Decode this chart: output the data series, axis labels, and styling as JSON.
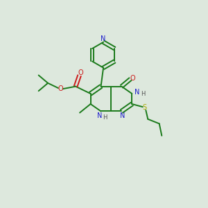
{
  "background_color": "#dde8dd",
  "atom_colors": {
    "N": "#1a1acc",
    "O": "#cc1a1a",
    "S": "#aaaa00",
    "C": "#1a7a1a",
    "H": "#505050"
  },
  "bond_color": "#1a7a1a",
  "figsize": [
    3.0,
    3.0
  ],
  "dpi": 100
}
